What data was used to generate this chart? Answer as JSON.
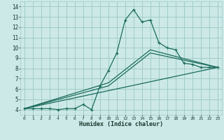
{
  "xlabel": "Humidex (Indice chaleur)",
  "bg_color": "#cce9e7",
  "grid_color": "#a0ccc9",
  "line_color": "#1a6b5a",
  "xlim": [
    -0.5,
    23.5
  ],
  "ylim": [
    3.5,
    14.5
  ],
  "xticks": [
    0,
    1,
    2,
    3,
    4,
    5,
    6,
    7,
    8,
    9,
    10,
    11,
    12,
    13,
    14,
    15,
    16,
    17,
    18,
    19,
    20,
    21,
    22,
    23
  ],
  "yticks": [
    4,
    5,
    6,
    7,
    8,
    9,
    10,
    11,
    12,
    13,
    14
  ],
  "line1_x": [
    0,
    1,
    2,
    3,
    4,
    5,
    6,
    7,
    8,
    9,
    10,
    11,
    12,
    13,
    14,
    15,
    16,
    17,
    18,
    19,
    20,
    21,
    22,
    23
  ],
  "line1_y": [
    4.1,
    4.1,
    4.1,
    4.1,
    4.0,
    4.1,
    4.1,
    4.5,
    4.0,
    6.3,
    7.8,
    9.5,
    12.7,
    13.7,
    12.5,
    12.7,
    10.5,
    10.0,
    9.8,
    8.5,
    8.4,
    8.1,
    8.1,
    8.1
  ],
  "line2_x": [
    0,
    23
  ],
  "line2_y": [
    4.1,
    8.1
  ],
  "line3_x": [
    0,
    10,
    15,
    23
  ],
  "line3_y": [
    4.1,
    6.3,
    9.5,
    8.1
  ],
  "line4_x": [
    0,
    10,
    15,
    23
  ],
  "line4_y": [
    4.1,
    6.6,
    9.8,
    8.1
  ]
}
